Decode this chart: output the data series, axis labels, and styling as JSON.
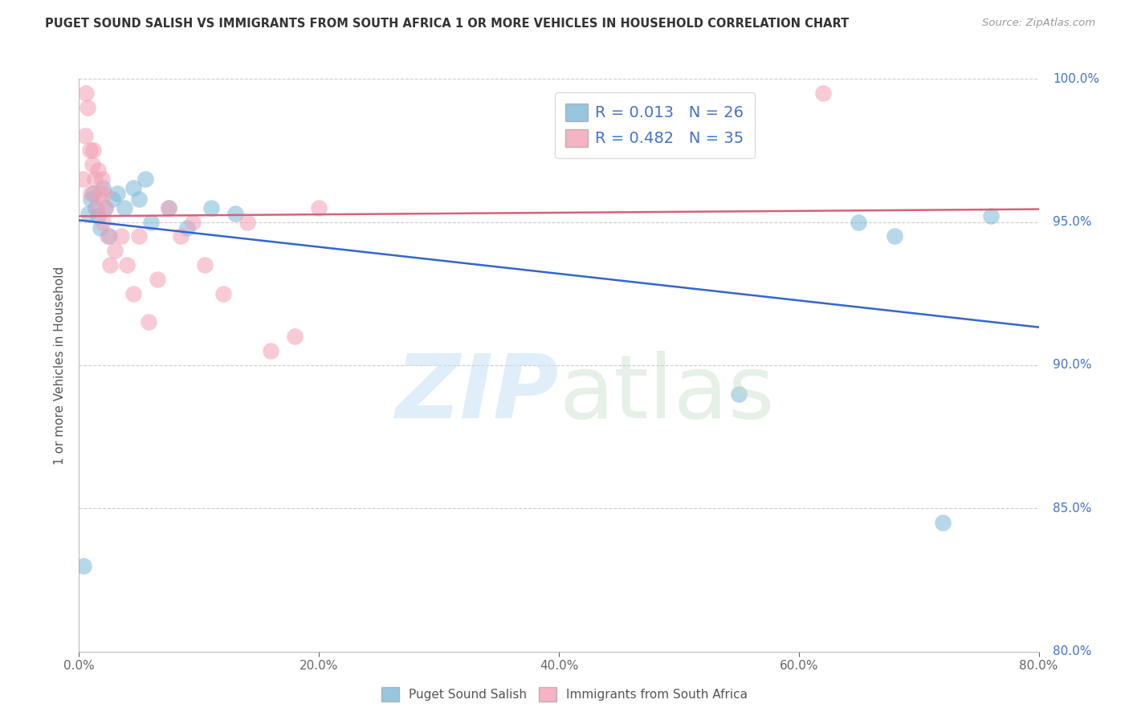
{
  "title": "PUGET SOUND SALISH VS IMMIGRANTS FROM SOUTH AFRICA 1 OR MORE VEHICLES IN HOUSEHOLD CORRELATION CHART",
  "source": "Source: ZipAtlas.com",
  "ylabel": "1 or more Vehicles in Household",
  "xlim": [
    0.0,
    80.0
  ],
  "ylim": [
    80.0,
    100.0
  ],
  "xticks": [
    0.0,
    20.0,
    40.0,
    60.0,
    80.0
  ],
  "yticks": [
    80.0,
    85.0,
    90.0,
    95.0,
    100.0
  ],
  "legend_bottom_labels": [
    "Puget Sound Salish",
    "Immigrants from South Africa"
  ],
  "R_blue": 0.013,
  "N_blue": 26,
  "R_pink": 0.482,
  "N_pink": 35,
  "blue_color": "#7db8d8",
  "pink_color": "#f4a0b5",
  "blue_line_color": "#3366cc",
  "pink_line_color": "#d9607a",
  "title_color": "#333333",
  "source_color": "#999999",
  "axis_label_color": "#4472c4",
  "legend_text_color": "#4472c4",
  "background_color": "#ffffff",
  "blue_x": [
    0.4,
    0.8,
    1.0,
    1.2,
    1.4,
    1.6,
    1.8,
    2.0,
    2.2,
    2.5,
    2.8,
    3.2,
    3.8,
    4.5,
    5.0,
    5.5,
    6.0,
    7.5,
    9.0,
    11.0,
    13.0,
    55.0,
    65.0,
    68.0,
    72.0,
    76.0
  ],
  "blue_y": [
    83.0,
    95.3,
    95.8,
    96.0,
    95.5,
    95.2,
    94.8,
    96.2,
    95.5,
    94.5,
    95.8,
    96.0,
    95.5,
    96.2,
    95.8,
    96.5,
    95.0,
    95.5,
    94.8,
    95.5,
    95.3,
    89.0,
    95.0,
    94.5,
    84.5,
    95.2
  ],
  "pink_x": [
    0.3,
    0.5,
    0.6,
    0.7,
    0.9,
    1.0,
    1.1,
    1.2,
    1.3,
    1.5,
    1.6,
    1.7,
    1.9,
    2.0,
    2.1,
    2.2,
    2.4,
    2.6,
    3.0,
    3.5,
    4.0,
    4.5,
    5.0,
    5.8,
    6.5,
    7.5,
    8.5,
    9.5,
    10.5,
    12.0,
    14.0,
    16.0,
    18.0,
    20.0,
    62.0
  ],
  "pink_y": [
    96.5,
    98.0,
    99.5,
    99.0,
    97.5,
    96.0,
    97.0,
    97.5,
    96.5,
    95.5,
    96.8,
    96.0,
    96.5,
    95.0,
    96.0,
    95.5,
    94.5,
    93.5,
    94.0,
    94.5,
    93.5,
    92.5,
    94.5,
    91.5,
    93.0,
    95.5,
    94.5,
    95.0,
    93.5,
    92.5,
    95.0,
    90.5,
    91.0,
    95.5,
    99.5
  ]
}
